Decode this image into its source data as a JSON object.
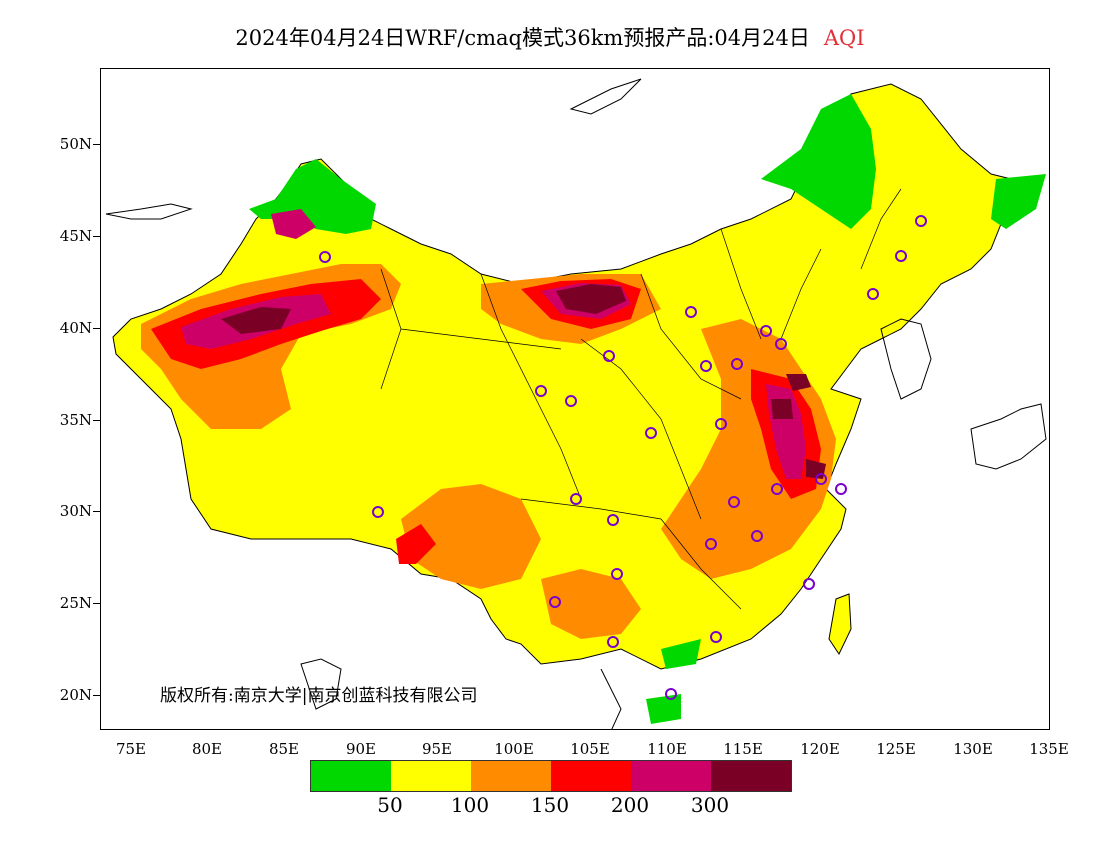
{
  "title": {
    "main": "2024年04月24日WRF/cmaq模式36km预报产品:04月24日",
    "variable": "AQI",
    "variable_color": "#e0303a"
  },
  "axes": {
    "y_labels": [
      "50N",
      "45N",
      "40N",
      "35N",
      "30N",
      "25N",
      "20N"
    ],
    "x_labels": [
      "75E",
      "80E",
      "85E",
      "90E",
      "95E",
      "100E",
      "105E",
      "110E",
      "115E",
      "120E",
      "125E",
      "130E",
      "135E"
    ]
  },
  "copyright": "版权所有:南京大学|南京创蓝科技有限公司",
  "legend": {
    "colors": [
      "#00d800",
      "#ffff00",
      "#ff8c00",
      "#ff0000",
      "#cc0066",
      "#7a0026"
    ],
    "labels": [
      "50",
      "100",
      "150",
      "200",
      "300"
    ]
  }
}
